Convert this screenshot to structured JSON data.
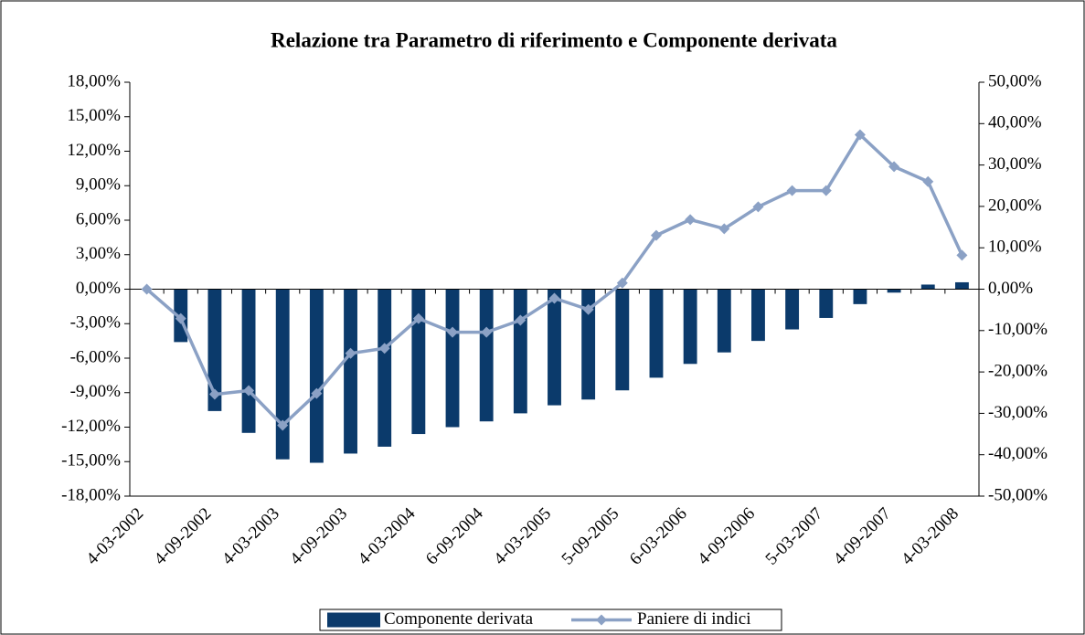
{
  "chart_data": {
    "type": "bar-line",
    "title": "Relazione tra Parametro di riferimento e Componente derivata",
    "categories": [
      "4-03-2002",
      null,
      "4-09-2002",
      null,
      "4-03-2003",
      null,
      "4-09-2003",
      null,
      "4-03-2004",
      null,
      "6-09-2004",
      null,
      "4-03-2005",
      null,
      "5-09-2005",
      null,
      "6-03-2006",
      null,
      "4-09-2006",
      null,
      "5-03-2007",
      null,
      "4-09-2007",
      null,
      "4-03-2008"
    ],
    "series": [
      {
        "name": "Componente derivata",
        "type": "bar",
        "color": "#0b3a6b",
        "axis": "y",
        "values": [
          0,
          -4.6,
          -10.6,
          -12.5,
          -14.8,
          -15.1,
          -14.3,
          -13.7,
          -12.6,
          -12.0,
          -11.5,
          -10.8,
          -10.1,
          -9.6,
          -8.8,
          -7.7,
          -6.5,
          -5.5,
          -4.5,
          -3.5,
          -2.5,
          -1.3,
          -0.3,
          0.4,
          0.6
        ]
      },
      {
        "name": "Paniere di indici",
        "type": "line",
        "color": "#8ba1c5",
        "axis": "y2",
        "values": [
          0,
          -7.1,
          -25.4,
          -24.5,
          -32.9,
          -25.2,
          -15.5,
          -14.3,
          -7.1,
          -10.4,
          -10.4,
          -7.5,
          -2.2,
          -4.9,
          1.5,
          13.0,
          16.8,
          14.6,
          19.9,
          23.8,
          23.8,
          37.3,
          29.6,
          26.0,
          8.2
        ]
      }
    ],
    "ylim": [
      -18,
      18
    ],
    "yticks": [
      {
        "value": -18,
        "label": "-18,00%"
      },
      {
        "value": -15,
        "label": "-15,00%"
      },
      {
        "value": -12,
        "label": "-12,00%"
      },
      {
        "value": -9,
        "label": "-9,00%"
      },
      {
        "value": -6,
        "label": "-6,00%"
      },
      {
        "value": -3,
        "label": "-3,00%"
      },
      {
        "value": 0,
        "label": "0,00%"
      },
      {
        "value": 3,
        "label": "3,00%"
      },
      {
        "value": 6,
        "label": "6,00%"
      },
      {
        "value": 9,
        "label": "9,00%"
      },
      {
        "value": 12,
        "label": "12,00%"
      },
      {
        "value": 15,
        "label": "15,00%"
      },
      {
        "value": 18,
        "label": "18,00%"
      }
    ],
    "y2lim": [
      -50,
      50
    ],
    "y2ticks": [
      {
        "value": -50,
        "label": "-50,00%"
      },
      {
        "value": -40,
        "label": "-40,00%"
      },
      {
        "value": -30,
        "label": "-30,00%"
      },
      {
        "value": -20,
        "label": "-20,00%"
      },
      {
        "value": -10,
        "label": "-10,00%"
      },
      {
        "value": 0,
        "label": "0,00%"
      },
      {
        "value": 10,
        "label": "10,00%"
      },
      {
        "value": 20,
        "label": "20,00%"
      },
      {
        "value": 30,
        "label": "30,00%"
      },
      {
        "value": 40,
        "label": "40,00%"
      },
      {
        "value": 50,
        "label": "50,00%"
      }
    ],
    "legend": "bottom"
  }
}
